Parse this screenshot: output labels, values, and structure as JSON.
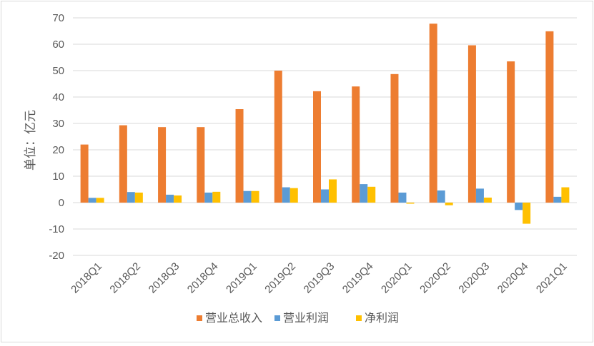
{
  "chart_data": {
    "type": "bar",
    "title": "",
    "xlabel": "",
    "ylabel": "单位：亿元",
    "ylim": [
      -20,
      70
    ],
    "ytick_step": 10,
    "grid": true,
    "legend_position": "bottom",
    "categories": [
      "2018Q1",
      "2018Q2",
      "2018Q3",
      "2018Q4",
      "2019Q1",
      "2019Q2",
      "2019Q3",
      "2019Q4",
      "2020Q1",
      "2020Q2",
      "2020Q3",
      "2020Q4",
      "2021Q1"
    ],
    "series": [
      {
        "name": "营业总收入",
        "color": "#ED7D31",
        "values": [
          22.0,
          29.3,
          28.6,
          28.6,
          35.4,
          50.0,
          42.2,
          44.0,
          48.7,
          67.8,
          59.6,
          53.5,
          64.9
        ]
      },
      {
        "name": "营业利润",
        "color": "#5B9BD5",
        "values": [
          1.8,
          4.0,
          3.0,
          3.8,
          4.4,
          5.8,
          5.0,
          7.0,
          3.8,
          4.6,
          5.3,
          -2.8,
          2.2
        ]
      },
      {
        "name": "净利润",
        "color": "#FFC000",
        "values": [
          1.8,
          3.8,
          2.7,
          4.1,
          4.4,
          5.5,
          8.8,
          6.0,
          -0.4,
          -1.0,
          1.9,
          -8.0,
          5.8
        ]
      }
    ]
  }
}
